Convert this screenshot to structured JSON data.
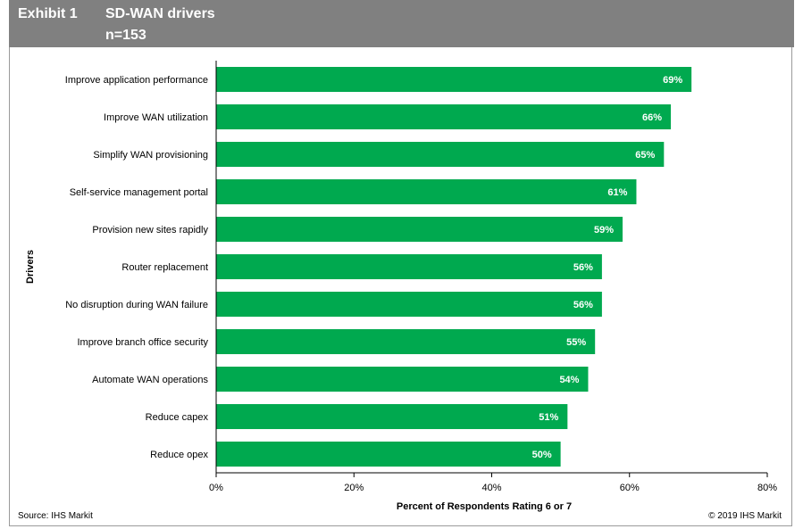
{
  "header": {
    "exhibit": "Exhibit 1",
    "title": "SD-WAN drivers",
    "subtitle": "n=153",
    "background": "#808080"
  },
  "footer": {
    "source": "Source:  IHS Markit",
    "copyright": "© 2019  IHS Markit"
  },
  "chart_data": {
    "type": "bar",
    "orientation": "horizontal",
    "categories": [
      "Improve application performance",
      "Improve WAN utilization",
      "Simplify WAN provisioning",
      "Self-service management portal",
      "Provision new sites rapidly",
      "Router replacement",
      "No disruption during WAN failure",
      "Improve branch office security",
      "Automate WAN operations",
      "Reduce capex",
      "Reduce opex"
    ],
    "values": [
      69,
      66,
      65,
      61,
      59,
      56,
      56,
      55,
      54,
      51,
      50
    ],
    "data_labels": [
      "69%",
      "66%",
      "65%",
      "61%",
      "59%",
      "56%",
      "56%",
      "55%",
      "54%",
      "51%",
      "50%"
    ],
    "xlabel": "Percent of Respondents Rating 6 or 7",
    "ylabel": "Drivers",
    "xlim": [
      0,
      80
    ],
    "xticks": [
      0,
      20,
      40,
      60,
      80
    ],
    "xtick_labels": [
      "0%",
      "20%",
      "40%",
      "60%",
      "80%"
    ],
    "grid": false,
    "bar_color": "#00a94f"
  }
}
